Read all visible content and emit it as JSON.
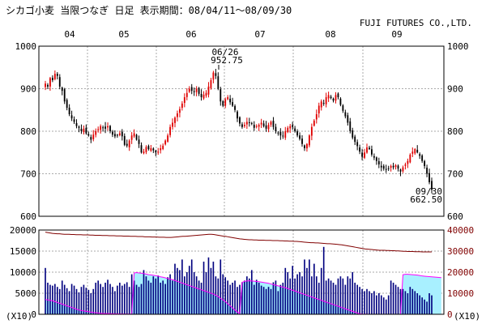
{
  "header": {
    "title": "シカゴ小麦 当限つなぎ 日足 表示期間：08/04/11～08/09/30",
    "company": "FUJI FUTURES CO.,LTD."
  },
  "colors": {
    "up": "#e00000",
    "down": "#000000",
    "grid": "#aaaaaa",
    "volume_bar": "#00007f",
    "oi_fill": "#a8f0ff",
    "line_magenta": "#ff00ff",
    "line_maroon": "#800000"
  },
  "chart_data": [
    {
      "type": "candlestick",
      "name": "price",
      "x_labels": [
        "04",
        "05",
        "06",
        "07",
        "08",
        "09"
      ],
      "ylim": [
        600,
        1000
      ],
      "y_ticks": [
        600,
        700,
        800,
        900,
        1000
      ],
      "grid": true,
      "annotations": [
        {
          "date": "06/26",
          "value": 952.75,
          "text": [
            "06/26",
            "952.75"
          ]
        },
        {
          "date": "09/30",
          "value": 662.5,
          "text": [
            "09/30",
            "662.50"
          ]
        }
      ],
      "closes": [
        912,
        905,
        925,
        920,
        935,
        930,
        905,
        895,
        870,
        855,
        840,
        830,
        822,
        812,
        808,
        800,
        806,
        795,
        790,
        780,
        792,
        800,
        805,
        812,
        808,
        806,
        812,
        800,
        792,
        788,
        790,
        795,
        788,
        768,
        766,
        778,
        790,
        795,
        780,
        770,
        750,
        752,
        763,
        758,
        760,
        755,
        750,
        752,
        760,
        766,
        778,
        790,
        810,
        820,
        832,
        842,
        852,
        865,
        880,
        890,
        900,
        895,
        892,
        900,
        888,
        880,
        886,
        890,
        905,
        920,
        938,
        930,
        900,
        870,
        860,
        875,
        880,
        868,
        860,
        850,
        830,
        818,
        810,
        815,
        822,
        820,
        818,
        808,
        812,
        815,
        820,
        812,
        806,
        815,
        822,
        810,
        800,
        795,
        790,
        788,
        800,
        808,
        812,
        810,
        800,
        790,
        782,
        770,
        760,
        770,
        790,
        810,
        825,
        840,
        860,
        870,
        865,
        880,
        885,
        878,
        872,
        885,
        880,
        862,
        848,
        835,
        820,
        800,
        785,
        775,
        765,
        752,
        740,
        750,
        762,
        758,
        745,
        738,
        730,
        722,
        715,
        712,
        710,
        712,
        718,
        715,
        720,
        712,
        705,
        715,
        722,
        730,
        745,
        752,
        758,
        750,
        742,
        730,
        718,
        700,
        680,
        662.5
      ]
    },
    {
      "type": "bar+area+line",
      "name": "volume-open-interest",
      "left_axis": {
        "ylim": [
          0,
          20000
        ],
        "ticks": [
          0,
          5000,
          10000,
          15000,
          20000
        ],
        "unit_label": "(X10)"
      },
      "right_axis": {
        "ylim": [
          0,
          40000
        ],
        "ticks": [
          0,
          10000,
          20000,
          30000,
          40000
        ],
        "unit_label": "(X10)"
      },
      "volume": [
        11000,
        7500,
        7000,
        6800,
        7200,
        6500,
        6000,
        8000,
        7000,
        6200,
        5500,
        7200,
        6800,
        6000,
        5200,
        6500,
        7000,
        6300,
        5800,
        5000,
        6000,
        7500,
        8000,
        7200,
        6500,
        7500,
        8200,
        7200,
        6500,
        5500,
        6800,
        7500,
        6800,
        7200,
        7600,
        6500,
        9500,
        8000,
        7000,
        6500,
        7200,
        10500,
        9000,
        8000,
        7500,
        9000,
        8500,
        9200,
        7500,
        8000,
        7200,
        8800,
        9500,
        8000,
        12000,
        11000,
        10500,
        13000,
        9000,
        10000,
        11500,
        13000,
        10000,
        9000,
        8000,
        7500,
        12500,
        10000,
        13500,
        11000,
        12500,
        9000,
        8500,
        13000,
        9500,
        8800,
        8000,
        7000,
        7500,
        8000,
        6500,
        7000,
        7600,
        8000,
        9000,
        8500,
        10500,
        7000,
        8200,
        7500,
        6800,
        6500,
        6000,
        6500,
        6000,
        7600,
        8000,
        5500,
        7000,
        7500,
        11000,
        10000,
        8500,
        11500,
        8500,
        9500,
        10000,
        9000,
        13000,
        11000,
        13000,
        9000,
        12000,
        9000,
        7500,
        11000,
        16000,
        8000,
        8500,
        8000,
        7500,
        7000,
        8500,
        9000,
        8500,
        7000,
        9000,
        8500,
        10000,
        7500,
        7000,
        6500,
        6000,
        5500,
        6000,
        5500,
        5000,
        5500,
        4500,
        5000,
        4500,
        4000,
        3500,
        4500,
        8000,
        7500,
        7000,
        6500,
        6000,
        6000,
        5500,
        5000,
        6500,
        6000,
        5500,
        5000,
        4500,
        4000,
        3500,
        3000,
        5000,
        4500
      ],
      "open_interest_left_units": [
        3500,
        3400,
        3300,
        3200,
        3000,
        2800,
        2600,
        2400,
        2200,
        2000,
        1800,
        1600,
        1400,
        1200,
        1000,
        900,
        800,
        700,
        600,
        500,
        400,
        350,
        300,
        250,
        200,
        180,
        160,
        140,
        120,
        100,
        90,
        80,
        70,
        60,
        50,
        40,
        30,
        9800,
        9900,
        9800,
        9750,
        9650,
        9550,
        9400,
        9350,
        9250,
        9150,
        9050,
        8900,
        8800,
        8650,
        8500,
        8350,
        8200,
        8000,
        7800,
        7600,
        7400,
        7200,
        7000,
        6800,
        6600,
        6400,
        6200,
        6000,
        5800,
        5600,
        5400,
        5200,
        5000,
        4800,
        4500,
        4200,
        3800,
        3400,
        3000,
        2500,
        2000,
        1500,
        1000,
        500,
        200,
        7600,
        7800,
        7900,
        7950,
        7900,
        7850,
        7800,
        7750,
        7650,
        7550,
        7450,
        7350,
        7200,
        7050,
        6900,
        6750,
        6600,
        6450,
        6300,
        6100,
        5900,
        5700,
        5500,
        5300,
        5100,
        4900,
        4700,
        4500,
        4300,
        4100,
        3900,
        3700,
        3500,
        3300,
        3100,
        2900,
        2700,
        2500,
        2300,
        2100,
        1900,
        1700,
        1500,
        1300,
        1100,
        900,
        700,
        500,
        300,
        100,
        50,
        30,
        20,
        10,
        8,
        6,
        5,
        4,
        3,
        2,
        1,
        1,
        1,
        1,
        1,
        1,
        1,
        9400,
        9500,
        9500,
        9450,
        9400,
        9350,
        9300,
        9200,
        9100,
        9050,
        9000,
        8950,
        8900,
        8850,
        8800,
        8750,
        8700
      ],
      "maroon_line_right_units": [
        39000,
        38800,
        38600,
        38400,
        38300,
        38200,
        38200,
        38100,
        38000,
        38000,
        38000,
        37900,
        37900,
        37800,
        37800,
        37800,
        37700,
        37700,
        37700,
        37600,
        37600,
        37500,
        37500,
        37500,
        37400,
        37400,
        37400,
        37300,
        37300,
        37300,
        37200,
        37200,
        37200,
        37100,
        37100,
        37100,
        37000,
        37000,
        37000,
        36900,
        36900,
        36900,
        36800,
        36800,
        36800,
        36700,
        36700,
        36700,
        36600,
        36600,
        36600,
        36500,
        36500,
        36500,
        36600,
        36700,
        36800,
        36900,
        37000,
        37000,
        37100,
        37200,
        37300,
        37400,
        37500,
        37600,
        37700,
        37800,
        37900,
        38000,
        38000,
        37900,
        37700,
        37500,
        37300,
        37100,
        37000,
        36800,
        36600,
        36400,
        36200,
        36000,
        35800,
        35700,
        35600,
        35500,
        35400,
        35400,
        35300,
        35300,
        35200,
        35200,
        35200,
        35100,
        35100,
        35100,
        35000,
        35000,
        35000,
        34900,
        34900,
        34800,
        34800,
        34700,
        34700,
        34600,
        34600,
        34500,
        34400,
        34300,
        34200,
        34100,
        34000,
        34000,
        33900,
        33900,
        33800,
        33700,
        33600,
        33500,
        33500,
        33400,
        33300,
        33200,
        33100,
        33000,
        32800,
        32600,
        32400,
        32200,
        32000,
        31800,
        31600,
        31400,
        31200,
        31000,
        30900,
        30800,
        30700,
        30600,
        30500,
        30400,
        30400,
        30400,
        30300,
        30300,
        30200,
        30200,
        30100,
        30100,
        30000,
        29900,
        29900,
        29800,
        29800,
        29800,
        29700,
        29700,
        29700,
        29600,
        29600,
        29600,
        29600,
        29600
      ]
    }
  ]
}
